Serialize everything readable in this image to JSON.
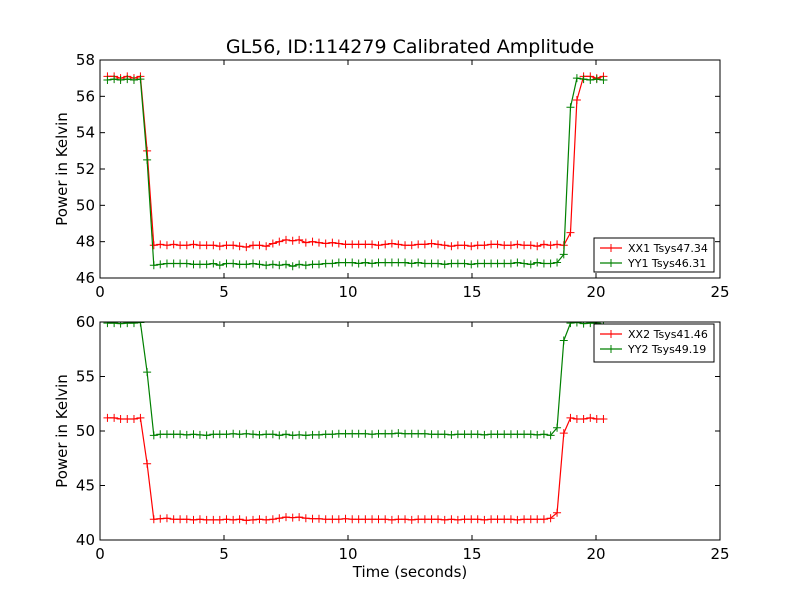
{
  "figure": {
    "title": "GL56, ID:114279 Calibrated Amplitude"
  },
  "chart_data": [
    {
      "type": "line",
      "title": "GL56, ID:114279 Calibrated Amplitude",
      "xlabel": "",
      "ylabel": "Power in Kelvin",
      "xlim": [
        0,
        25
      ],
      "ylim": [
        46,
        58
      ],
      "xticks": [
        0,
        5,
        10,
        15,
        20,
        25
      ],
      "yticks": [
        46,
        48,
        50,
        52,
        54,
        56,
        58
      ],
      "grid": false,
      "legend_position": "lower-right",
      "series": [
        {
          "name": "XX1 Tsys47.34",
          "color": "#ff0000",
          "x": [
            0.3,
            0.57,
            0.83,
            1.1,
            1.37,
            1.63,
            1.9,
            2.17,
            2.43,
            2.7,
            2.97,
            3.23,
            3.5,
            3.77,
            4.03,
            4.3,
            4.57,
            4.83,
            5.1,
            5.37,
            5.63,
            5.9,
            6.17,
            6.43,
            6.7,
            6.97,
            7.23,
            7.5,
            7.77,
            8.03,
            8.3,
            8.57,
            8.83,
            9.1,
            9.37,
            9.63,
            9.9,
            10.17,
            10.43,
            10.7,
            10.97,
            11.23,
            11.5,
            11.77,
            12.03,
            12.3,
            12.57,
            12.83,
            13.1,
            13.37,
            13.63,
            13.9,
            14.17,
            14.43,
            14.7,
            14.97,
            15.23,
            15.5,
            15.77,
            16.03,
            16.3,
            16.57,
            16.83,
            17.1,
            17.37,
            17.63,
            17.9,
            18.17,
            18.43,
            18.7,
            18.97,
            19.23,
            19.5,
            19.77,
            20.03,
            20.3
          ],
          "y": [
            57.1,
            57.1,
            57.0,
            57.1,
            57.0,
            57.1,
            53.0,
            47.8,
            47.85,
            47.8,
            47.85,
            47.8,
            47.8,
            47.85,
            47.8,
            47.8,
            47.8,
            47.75,
            47.8,
            47.8,
            47.75,
            47.7,
            47.8,
            47.8,
            47.75,
            47.9,
            48.0,
            48.1,
            48.05,
            48.1,
            47.95,
            48.0,
            47.95,
            47.9,
            47.95,
            47.9,
            47.85,
            47.85,
            47.85,
            47.85,
            47.85,
            47.8,
            47.85,
            47.9,
            47.85,
            47.8,
            47.8,
            47.85,
            47.85,
            47.9,
            47.85,
            47.8,
            47.75,
            47.8,
            47.8,
            47.75,
            47.8,
            47.8,
            47.85,
            47.85,
            47.8,
            47.8,
            47.85,
            47.8,
            47.8,
            47.75,
            47.85,
            47.8,
            47.85,
            47.8,
            48.5,
            55.8,
            57.1,
            57.1,
            57.0,
            57.1
          ]
        },
        {
          "name": "YY1 Tsys46.31",
          "color": "#008000",
          "x": [
            0.3,
            0.57,
            0.83,
            1.1,
            1.37,
            1.63,
            1.9,
            2.17,
            2.43,
            2.7,
            2.97,
            3.23,
            3.5,
            3.77,
            4.03,
            4.3,
            4.57,
            4.83,
            5.1,
            5.37,
            5.63,
            5.9,
            6.17,
            6.43,
            6.7,
            6.97,
            7.23,
            7.5,
            7.77,
            8.03,
            8.3,
            8.57,
            8.83,
            9.1,
            9.37,
            9.63,
            9.9,
            10.17,
            10.43,
            10.7,
            10.97,
            11.23,
            11.5,
            11.77,
            12.03,
            12.3,
            12.57,
            12.83,
            13.1,
            13.37,
            13.63,
            13.9,
            14.17,
            14.43,
            14.7,
            14.97,
            15.23,
            15.5,
            15.77,
            16.03,
            16.3,
            16.57,
            16.83,
            17.1,
            17.37,
            17.63,
            17.9,
            18.17,
            18.43,
            18.7,
            18.97,
            19.23,
            19.5,
            19.77,
            20.03,
            20.3
          ],
          "y": [
            56.9,
            56.95,
            56.9,
            56.95,
            56.9,
            56.95,
            52.5,
            46.7,
            46.75,
            46.8,
            46.8,
            46.8,
            46.8,
            46.75,
            46.75,
            46.75,
            46.8,
            46.7,
            46.8,
            46.8,
            46.75,
            46.75,
            46.8,
            46.75,
            46.7,
            46.75,
            46.7,
            46.75,
            46.65,
            46.75,
            46.7,
            46.75,
            46.75,
            46.8,
            46.8,
            46.85,
            46.85,
            46.85,
            46.8,
            46.85,
            46.8,
            46.85,
            46.85,
            46.85,
            46.85,
            46.85,
            46.8,
            46.85,
            46.8,
            46.8,
            46.8,
            46.75,
            46.8,
            46.8,
            46.8,
            46.75,
            46.8,
            46.8,
            46.8,
            46.8,
            46.8,
            46.8,
            46.85,
            46.8,
            46.75,
            46.85,
            46.8,
            46.8,
            46.85,
            47.3,
            55.4,
            57.0,
            56.95,
            56.9,
            56.95,
            56.9
          ]
        }
      ]
    },
    {
      "type": "line",
      "title": "",
      "xlabel": "Time (seconds)",
      "ylabel": "Power in Kelvin",
      "xlim": [
        0,
        25
      ],
      "ylim": [
        40,
        60
      ],
      "xticks": [
        0,
        5,
        10,
        15,
        20,
        25
      ],
      "yticks": [
        40,
        45,
        50,
        55,
        60
      ],
      "grid": false,
      "legend_position": "upper-right",
      "series": [
        {
          "name": "XX2 Tsys41.46",
          "color": "#ff0000",
          "x": [
            0.3,
            0.57,
            0.83,
            1.1,
            1.37,
            1.63,
            1.9,
            2.17,
            2.43,
            2.7,
            2.97,
            3.23,
            3.5,
            3.77,
            4.03,
            4.3,
            4.57,
            4.83,
            5.1,
            5.37,
            5.63,
            5.9,
            6.17,
            6.43,
            6.7,
            6.97,
            7.23,
            7.5,
            7.77,
            8.03,
            8.3,
            8.57,
            8.83,
            9.1,
            9.37,
            9.63,
            9.9,
            10.17,
            10.43,
            10.7,
            10.97,
            11.23,
            11.5,
            11.77,
            12.03,
            12.3,
            12.57,
            12.83,
            13.1,
            13.37,
            13.63,
            13.9,
            14.17,
            14.43,
            14.7,
            14.97,
            15.23,
            15.5,
            15.77,
            16.03,
            16.3,
            16.57,
            16.83,
            17.1,
            17.37,
            17.63,
            17.9,
            18.17,
            18.43,
            18.7,
            18.97,
            19.23,
            19.5,
            19.77,
            20.03,
            20.3
          ],
          "y": [
            51.2,
            51.2,
            51.1,
            51.1,
            51.1,
            51.2,
            47.0,
            41.9,
            41.95,
            42.0,
            41.9,
            41.9,
            41.9,
            41.85,
            41.9,
            41.85,
            41.85,
            41.85,
            41.9,
            41.85,
            41.9,
            41.8,
            41.85,
            41.9,
            41.85,
            41.9,
            42.0,
            42.1,
            42.05,
            42.1,
            42.0,
            41.95,
            41.95,
            41.9,
            41.9,
            41.9,
            41.95,
            41.9,
            41.9,
            41.9,
            41.9,
            41.9,
            41.9,
            41.85,
            41.9,
            41.9,
            41.85,
            41.9,
            41.9,
            41.9,
            41.9,
            41.85,
            41.9,
            41.85,
            41.9,
            41.9,
            41.9,
            41.85,
            41.9,
            41.9,
            41.9,
            41.9,
            41.85,
            41.9,
            41.9,
            41.9,
            41.9,
            42.0,
            42.5,
            49.8,
            51.2,
            51.1,
            51.1,
            51.2,
            51.1,
            51.1
          ]
        },
        {
          "name": "YY2 Tsys49.19",
          "color": "#008000",
          "x": [
            0.3,
            0.57,
            0.83,
            1.1,
            1.37,
            1.63,
            1.9,
            2.17,
            2.43,
            2.7,
            2.97,
            3.23,
            3.5,
            3.77,
            4.03,
            4.3,
            4.57,
            4.83,
            5.1,
            5.37,
            5.63,
            5.9,
            6.17,
            6.43,
            6.7,
            6.97,
            7.23,
            7.5,
            7.77,
            8.03,
            8.3,
            8.57,
            8.83,
            9.1,
            9.37,
            9.63,
            9.9,
            10.17,
            10.43,
            10.7,
            10.97,
            11.23,
            11.5,
            11.77,
            12.03,
            12.3,
            12.57,
            12.83,
            13.1,
            13.37,
            13.63,
            13.9,
            14.17,
            14.43,
            14.7,
            14.97,
            15.23,
            15.5,
            15.77,
            16.03,
            16.3,
            16.57,
            16.83,
            17.1,
            17.37,
            17.63,
            17.9,
            18.17,
            18.43,
            18.7,
            18.97,
            19.23,
            19.5,
            19.77,
            20.03,
            20.3
          ],
          "y": [
            59.9,
            59.9,
            59.85,
            59.9,
            59.9,
            59.95,
            55.4,
            49.6,
            49.7,
            49.7,
            49.7,
            49.7,
            49.65,
            49.7,
            49.65,
            49.6,
            49.7,
            49.7,
            49.7,
            49.75,
            49.7,
            49.75,
            49.7,
            49.65,
            49.7,
            49.7,
            49.6,
            49.7,
            49.6,
            49.65,
            49.6,
            49.65,
            49.65,
            49.7,
            49.7,
            49.75,
            49.75,
            49.75,
            49.75,
            49.75,
            49.7,
            49.75,
            49.75,
            49.75,
            49.8,
            49.75,
            49.75,
            49.75,
            49.75,
            49.7,
            49.7,
            49.7,
            49.65,
            49.7,
            49.7,
            49.7,
            49.7,
            49.65,
            49.7,
            49.7,
            49.7,
            49.7,
            49.7,
            49.7,
            49.7,
            49.65,
            49.7,
            49.6,
            50.3,
            58.3,
            59.9,
            59.95,
            59.85,
            59.9,
            59.9,
            59.8
          ]
        }
      ]
    }
  ]
}
